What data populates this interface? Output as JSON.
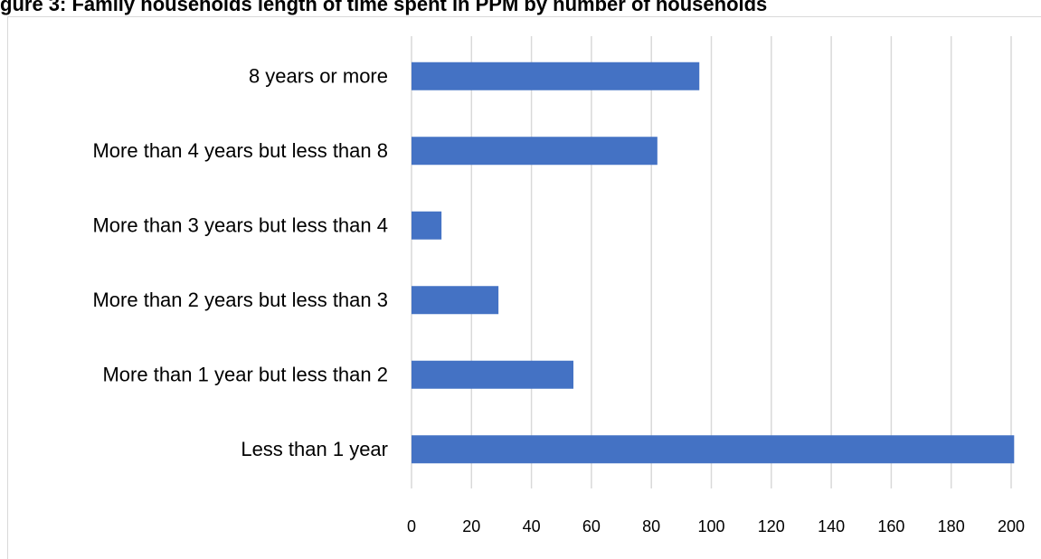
{
  "chart_data": {
    "type": "bar",
    "orientation": "horizontal",
    "title": "gure 3: Family households length of time spent in PPM by number of households",
    "categories": [
      "8 years or more",
      "More than 4 years but less than 8",
      "More than 3 years but less than 4",
      "More than 2 years but less than 3",
      "More than 1 year but less than 2",
      "Less than 1 year"
    ],
    "values": [
      96,
      82,
      10,
      29,
      54,
      201
    ],
    "xlim": [
      0,
      200
    ],
    "xticks": [
      "0",
      "20",
      "40",
      "60",
      "80",
      "100",
      "120",
      "140",
      "160",
      "180",
      "200"
    ],
    "grid": "vertical",
    "bar_color": "#4472c4",
    "grid_color": "#d9d9d9"
  }
}
